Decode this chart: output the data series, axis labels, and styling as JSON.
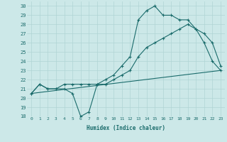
{
  "xlabel": "Humidex (Indice chaleur)",
  "xlim": [
    -0.5,
    23.5
  ],
  "ylim": [
    18,
    30.5
  ],
  "xticks": [
    0,
    1,
    2,
    3,
    4,
    5,
    6,
    7,
    8,
    9,
    10,
    11,
    12,
    13,
    14,
    15,
    16,
    17,
    18,
    19,
    20,
    21,
    22,
    23
  ],
  "yticks": [
    18,
    19,
    20,
    21,
    22,
    23,
    24,
    25,
    26,
    27,
    28,
    29,
    30
  ],
  "bg_color": "#cce8e8",
  "grid_color": "#b0d4d4",
  "line_color": "#1a6b6b",
  "line1_x": [
    0,
    1,
    2,
    3,
    4,
    5,
    6,
    7,
    8,
    9,
    10,
    11,
    12,
    13,
    14,
    15,
    16,
    17,
    18,
    19,
    20,
    21,
    22,
    23
  ],
  "line1_y": [
    20.5,
    21.5,
    21.0,
    21.0,
    21.0,
    20.5,
    18.0,
    18.5,
    21.5,
    22.0,
    22.5,
    23.5,
    24.5,
    28.5,
    29.5,
    30.0,
    29.0,
    29.0,
    28.5,
    28.5,
    27.5,
    26.0,
    24.0,
    23.0
  ],
  "line2_x": [
    0,
    1,
    2,
    3,
    4,
    5,
    6,
    7,
    8,
    9,
    10,
    11,
    12,
    13,
    14,
    15,
    16,
    17,
    18,
    19,
    20,
    21,
    22,
    23
  ],
  "line2_y": [
    20.5,
    21.5,
    21.0,
    21.0,
    21.5,
    21.5,
    21.5,
    21.5,
    21.5,
    21.5,
    22.0,
    22.5,
    23.0,
    24.5,
    25.5,
    26.0,
    26.5,
    27.0,
    27.5,
    28.0,
    27.5,
    27.0,
    26.0,
    23.5
  ],
  "line3_x": [
    0,
    23
  ],
  "line3_y": [
    20.5,
    23.0
  ]
}
